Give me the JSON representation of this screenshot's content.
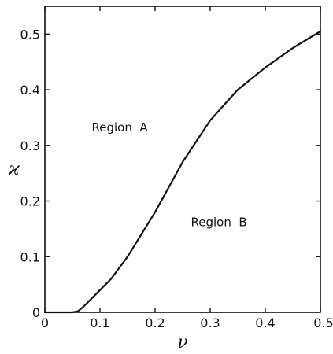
{
  "chart_data": {
    "type": "line",
    "xlabel": "ν",
    "ylabel": "ϰ",
    "xlim": [
      0,
      0.5
    ],
    "ylim": [
      0,
      0.55
    ],
    "x_ticks": [
      "0",
      "0.1",
      "0.2",
      "0.3",
      "0.4",
      "0.5"
    ],
    "y_ticks": [
      "0",
      "0.1",
      "0.2",
      "0.3",
      "0.4",
      "0.5"
    ],
    "grid": false,
    "series": [
      {
        "x": [
          0,
          0.05,
          0.06,
          0.07,
          0.08,
          0.1,
          0.12,
          0.15,
          0.2,
          0.25,
          0.3,
          0.35,
          0.4,
          0.45,
          0.5
        ],
        "y": [
          0,
          0,
          0.002,
          0.01,
          0.02,
          0.04,
          0.06,
          0.1,
          0.18,
          0.27,
          0.345,
          0.4,
          0.44,
          0.475,
          0.505
        ]
      }
    ],
    "annotations": [
      {
        "text": "Region  A",
        "x": 0.085,
        "y": 0.325
      },
      {
        "text": "Region  B",
        "x": 0.265,
        "y": 0.155
      }
    ]
  }
}
